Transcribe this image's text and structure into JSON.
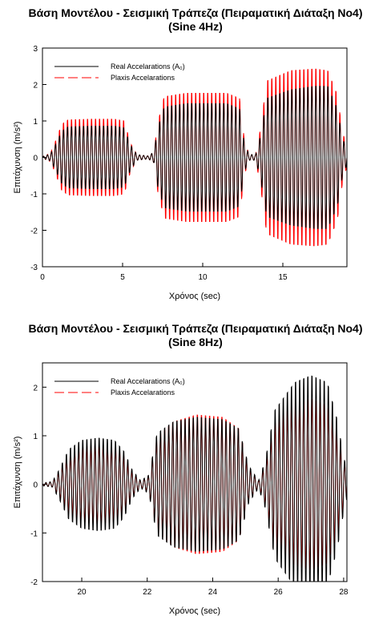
{
  "chart_data": [
    {
      "type": "line",
      "title": "Βάση Μοντέλου - Σεισμική Τράπεζα (Πειραματική Διάταξη Νο4)",
      "subtitle": "(Sine 4Hz)",
      "xlabel": "Χρόνος (sec)",
      "ylabel": "Επιτάχυνση (m/s²)",
      "xlim": [
        0,
        19
      ],
      "ylim": [
        -3,
        3
      ],
      "xticks": [
        0,
        5,
        10,
        15
      ],
      "yticks": [
        -3,
        -2,
        -1,
        0,
        1,
        2,
        3
      ],
      "grid": false,
      "legend_position": "top-left",
      "frequency_hz": 4,
      "series": [
        {
          "name": "Real Accelarations (A₀)",
          "color": "#000000",
          "dash": "solid",
          "envelope": [
            [
              0,
              0.02
            ],
            [
              0.5,
              0.1
            ],
            [
              0.8,
              0.35
            ],
            [
              1.2,
              0.75
            ],
            [
              1.6,
              0.88
            ],
            [
              3.0,
              0.9
            ],
            [
              4.5,
              0.9
            ],
            [
              5.1,
              0.85
            ],
            [
              5.5,
              0.35
            ],
            [
              5.9,
              0.08
            ],
            [
              6.6,
              0.04
            ],
            [
              6.95,
              0.15
            ],
            [
              7.2,
              0.85
            ],
            [
              7.6,
              1.45
            ],
            [
              9.0,
              1.55
            ],
            [
              11.5,
              1.55
            ],
            [
              12.3,
              1.4
            ],
            [
              12.6,
              0.4
            ],
            [
              12.9,
              0.08
            ],
            [
              13.3,
              0.08
            ],
            [
              13.6,
              0.6
            ],
            [
              14.0,
              1.7
            ],
            [
              15.5,
              1.95
            ],
            [
              17.0,
              2.05
            ],
            [
              17.8,
              2.05
            ],
            [
              18.4,
              1.4
            ],
            [
              18.7,
              0.6
            ],
            [
              19,
              0.2
            ]
          ]
        },
        {
          "name": "Plaxis Accelarations",
          "color": "#ff0000",
          "dash": "dashed",
          "envelope": [
            [
              0,
              0.02
            ],
            [
              0.5,
              0.12
            ],
            [
              0.8,
              0.45
            ],
            [
              1.2,
              0.95
            ],
            [
              1.6,
              1.08
            ],
            [
              3.0,
              1.1
            ],
            [
              4.5,
              1.1
            ],
            [
              5.1,
              1.05
            ],
            [
              5.5,
              0.4
            ],
            [
              5.9,
              0.08
            ],
            [
              6.6,
              0.04
            ],
            [
              6.95,
              0.15
            ],
            [
              7.2,
              1.0
            ],
            [
              7.6,
              1.75
            ],
            [
              9.0,
              1.85
            ],
            [
              11.5,
              1.85
            ],
            [
              12.3,
              1.7
            ],
            [
              12.6,
              0.5
            ],
            [
              12.9,
              0.08
            ],
            [
              13.3,
              0.08
            ],
            [
              13.6,
              0.8
            ],
            [
              14.0,
              2.2
            ],
            [
              15.5,
              2.5
            ],
            [
              17.0,
              2.55
            ],
            [
              17.8,
              2.5
            ],
            [
              18.4,
              1.8
            ],
            [
              18.7,
              0.8
            ],
            [
              19,
              0.25
            ]
          ]
        }
      ]
    },
    {
      "type": "line",
      "title": "Βάση Μοντέλου - Σεισμική Τράπεζα (Πειραματική Διάταξη Νο4)",
      "subtitle": "(Sine 8Hz)",
      "xlabel": "Χρόνος (sec)",
      "ylabel": "Επιτάχυνση (m/s²)",
      "xlim": [
        18.8,
        28.1
      ],
      "ylim": [
        -2,
        2.5
      ],
      "xticks": [
        20,
        22,
        24,
        26,
        28
      ],
      "yticks": [
        -2,
        -1,
        0,
        1,
        2
      ],
      "grid": false,
      "legend_position": "top-left",
      "frequency_hz": 8,
      "series": [
        {
          "name": "Real Accelarations (A₀)",
          "color": "#000000",
          "dash": "solid",
          "envelope": [
            [
              18.8,
              0.03
            ],
            [
              19.1,
              0.06
            ],
            [
              19.3,
              0.3
            ],
            [
              19.6,
              0.75
            ],
            [
              20.0,
              0.95
            ],
            [
              20.5,
              1.0
            ],
            [
              21.0,
              0.95
            ],
            [
              21.3,
              0.7
            ],
            [
              21.55,
              0.3
            ],
            [
              21.8,
              0.08
            ],
            [
              22.05,
              0.2
            ],
            [
              22.3,
              1.1
            ],
            [
              22.8,
              1.35
            ],
            [
              23.5,
              1.45
            ],
            [
              24.3,
              1.4
            ],
            [
              24.8,
              1.2
            ],
            [
              25.1,
              0.4
            ],
            [
              25.4,
              0.08
            ],
            [
              25.6,
              0.5
            ],
            [
              25.9,
              1.6
            ],
            [
              26.5,
              2.2
            ],
            [
              27.0,
              2.35
            ],
            [
              27.5,
              2.2
            ],
            [
              27.8,
              1.4
            ],
            [
              28.0,
              0.6
            ],
            [
              28.1,
              0.3
            ]
          ]
        },
        {
          "name": "Plaxis Accelarations",
          "color": "#ff0000",
          "dash": "dashed",
          "envelope": [
            [
              18.8,
              0.02
            ],
            [
              19.1,
              0.05
            ],
            [
              19.3,
              0.25
            ],
            [
              19.6,
              0.6
            ],
            [
              20.0,
              0.8
            ],
            [
              20.5,
              0.85
            ],
            [
              21.0,
              0.8
            ],
            [
              21.3,
              0.6
            ],
            [
              21.55,
              0.25
            ],
            [
              21.8,
              0.06
            ],
            [
              22.05,
              0.18
            ],
            [
              22.3,
              1.0
            ],
            [
              22.8,
              1.35
            ],
            [
              23.5,
              1.5
            ],
            [
              24.3,
              1.45
            ],
            [
              24.8,
              1.2
            ],
            [
              25.1,
              0.35
            ],
            [
              25.4,
              0.06
            ],
            [
              25.6,
              0.4
            ],
            [
              25.9,
              1.3
            ],
            [
              26.5,
              1.75
            ],
            [
              27.0,
              1.85
            ],
            [
              27.5,
              1.7
            ],
            [
              27.8,
              1.1
            ],
            [
              28.0,
              0.5
            ],
            [
              28.1,
              0.25
            ]
          ]
        }
      ]
    }
  ]
}
